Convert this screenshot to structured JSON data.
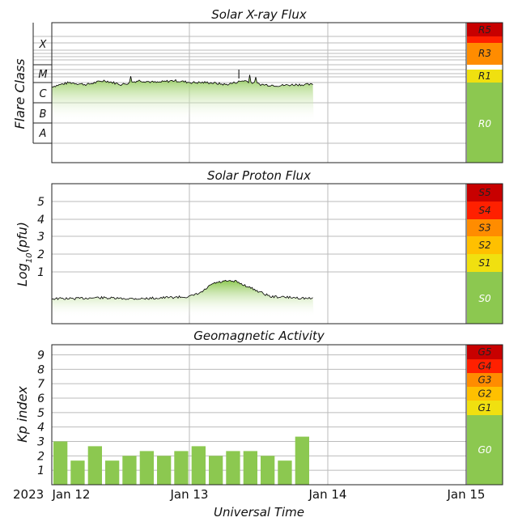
{
  "chart_data": [
    {
      "type": "area",
      "title": "Solar X-ray Flux",
      "ylabel": "Flare Class",
      "flare_classes": [
        "X",
        "M",
        "C",
        "B",
        "A"
      ],
      "x": [
        "2023-01-12 00:00",
        "2023-01-12 03:00",
        "2023-01-12 06:00",
        "2023-01-12 09:00",
        "2023-01-12 12:00",
        "2023-01-12 15:00",
        "2023-01-12 18:00",
        "2023-01-12 21:00",
        "2023-01-13 00:00",
        "2023-01-13 03:00",
        "2023-01-13 06:00",
        "2023-01-13 09:00",
        "2023-01-13 12:00",
        "2023-01-13 15:00",
        "2023-01-13 18:00",
        "2023-01-13 21:00"
      ],
      "values_class_level": [
        2.8,
        3.0,
        2.9,
        3.1,
        2.9,
        3.1,
        3.0,
        3.1,
        3.0,
        3.0,
        2.9,
        3.1,
        2.9,
        2.85,
        2.9,
        2.9
      ],
      "scale": [
        {
          "label": "R5",
          "color": "#c80000"
        },
        {
          "label": "R3",
          "color": "#ff8c00"
        },
        {
          "label": "R1",
          "color": "#f0e010"
        },
        {
          "label": "R0",
          "color": "#8cc850"
        }
      ]
    },
    {
      "type": "area",
      "title": "Solar Proton Flux",
      "ylabel": "Log10(pfu)",
      "ylabel_main": "Log",
      "ylabel_sub": "10",
      "ylabel_rest": "(pfu)",
      "ytick_labels": [
        "5",
        "4",
        "3",
        "2",
        "1"
      ],
      "x": [
        "2023-01-12 00:00",
        "2023-01-12 04:00",
        "2023-01-12 08:00",
        "2023-01-12 12:00",
        "2023-01-12 16:00",
        "2023-01-12 20:00",
        "2023-01-13 00:00",
        "2023-01-13 02:00",
        "2023-01-13 04:00",
        "2023-01-13 06:00",
        "2023-01-13 08:00",
        "2023-01-13 10:00",
        "2023-01-13 14:00",
        "2023-01-13 18:00",
        "2023-01-13 21:00"
      ],
      "values_log_pfu": [
        0.0,
        0.0,
        0.05,
        0.0,
        0.0,
        0.05,
        0.1,
        0.3,
        0.75,
        0.85,
        0.85,
        0.6,
        0.1,
        0.05,
        0.0
      ],
      "scale": [
        {
          "label": "S5",
          "color": "#c80000"
        },
        {
          "label": "S4",
          "color": "#ff2000"
        },
        {
          "label": "S3",
          "color": "#ff8c00"
        },
        {
          "label": "S2",
          "color": "#ffc000"
        },
        {
          "label": "S1",
          "color": "#f0e010"
        },
        {
          "label": "S0",
          "color": "#8cc850"
        }
      ]
    },
    {
      "type": "bar",
      "title": "Geomagnetic Activity",
      "ylabel": "Kp index",
      "ytick_labels": [
        "9",
        "8",
        "7",
        "6",
        "5",
        "4",
        "3",
        "2",
        "1"
      ],
      "ylim": [
        0,
        9.7
      ],
      "x": [
        "2023-01-12 00:00",
        "2023-01-12 03:00",
        "2023-01-12 06:00",
        "2023-01-12 09:00",
        "2023-01-12 12:00",
        "2023-01-12 15:00",
        "2023-01-12 18:00",
        "2023-01-12 21:00",
        "2023-01-13 00:00",
        "2023-01-13 03:00",
        "2023-01-13 06:00",
        "2023-01-13 09:00",
        "2023-01-13 12:00",
        "2023-01-13 15:00",
        "2023-01-13 18:00",
        "2023-01-13 21:00"
      ],
      "values": [
        3.0,
        1.67,
        2.67,
        1.67,
        2.0,
        2.33,
        2.0,
        2.33,
        2.67,
        2.0,
        2.33,
        2.33,
        2.0,
        1.67,
        3.33,
        null
      ],
      "bar_color": "#8cc850",
      "scale": [
        {
          "label": "G5",
          "color": "#c80000"
        },
        {
          "label": "G4",
          "color": "#ff2000"
        },
        {
          "label": "G3",
          "color": "#ff8c00"
        },
        {
          "label": "G2",
          "color": "#ffc000"
        },
        {
          "label": "G1",
          "color": "#f0e010"
        },
        {
          "label": "G0",
          "color": "#8cc850"
        }
      ]
    }
  ],
  "x_axis": {
    "year_label": "2023",
    "tick_labels": [
      "Jan 12",
      "Jan 13",
      "Jan 14",
      "Jan 15"
    ],
    "xlabel": "Universal Time"
  },
  "colors": {
    "flux_fill_top": "#8cc850",
    "flux_line": "#000000",
    "xray_highlight": "#e8e040"
  }
}
